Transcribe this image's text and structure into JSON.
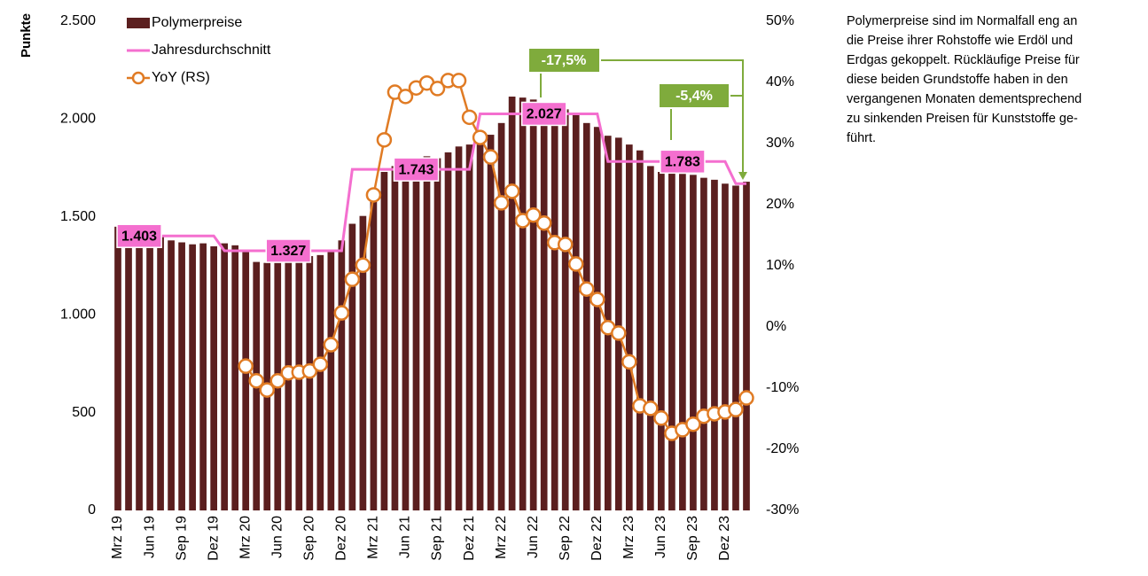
{
  "chart_data": {
    "type": "bar-line",
    "y_label": "Punkte",
    "categories": [
      "Mrz 19",
      null,
      null,
      "Jun 19",
      null,
      null,
      "Sep 19",
      null,
      null,
      "Dez 19",
      null,
      null,
      "Mrz 20",
      null,
      null,
      "Jun 20",
      null,
      null,
      "Sep 20",
      null,
      null,
      "Dez 20",
      null,
      null,
      "Mrz 21",
      null,
      null,
      "Jun 21",
      null,
      null,
      "Sep 21",
      null,
      null,
      "Dez 21",
      null,
      null,
      "Mrz 22",
      null,
      null,
      "Jun 22",
      null,
      null,
      "Sep 22",
      null,
      null,
      "Dez 22",
      null,
      null,
      "Mrz 23",
      null,
      null,
      "Jun 23",
      null,
      null,
      "Sep 23",
      null,
      null,
      "Dez 23",
      null,
      null
    ],
    "series": [
      {
        "name": "Polymerpreise",
        "type": "bar",
        "color": "#5b1f1f",
        "values": [
          1450,
          1455,
          1450,
          1440,
          1400,
          1380,
          1370,
          1360,
          1365,
          1350,
          1365,
          1355,
          1320,
          1270,
          1265,
          1265,
          1270,
          1290,
          1300,
          1305,
          1320,
          1380,
          1465,
          1505,
          1640,
          1730,
          1760,
          1780,
          1795,
          1810,
          1800,
          1830,
          1860,
          1870,
          1870,
          1920,
          1980,
          2115,
          2110,
          2100,
          2080,
          2060,
          2050,
          2020,
          1980,
          1960,
          1915,
          1905,
          1870,
          1840,
          1760,
          1730,
          1725,
          1720,
          1715,
          1700,
          1690,
          1670,
          1660,
          1680
        ]
      },
      {
        "name": "Jahresdurchschnitt",
        "type": "line",
        "color": "#f46fcf",
        "values": [
          1403,
          1403,
          1403,
          1403,
          1403,
          1403,
          1403,
          1403,
          1403,
          1403,
          1327,
          1327,
          1327,
          1327,
          1327,
          1327,
          1327,
          1327,
          1327,
          1327,
          1327,
          1327,
          1743,
          1743,
          1743,
          1743,
          1743,
          1743,
          1743,
          1743,
          1743,
          1743,
          1743,
          1743,
          2027,
          2027,
          2027,
          2027,
          2027,
          2027,
          2027,
          2027,
          2027,
          2027,
          2027,
          2027,
          1783,
          1783,
          1783,
          1783,
          1783,
          1783,
          1783,
          1783,
          1783,
          1783,
          1783,
          1783,
          1670,
          1670
        ],
        "value_labels": [
          null,
          null,
          "1.403",
          null,
          null,
          null,
          null,
          null,
          null,
          null,
          null,
          null,
          null,
          null,
          null,
          null,
          "1.327",
          null,
          null,
          null,
          null,
          null,
          null,
          null,
          null,
          null,
          null,
          null,
          "1.743",
          null,
          null,
          null,
          null,
          null,
          null,
          null,
          null,
          null,
          null,
          null,
          "2.027",
          null,
          null,
          null,
          null,
          null,
          null,
          null,
          null,
          null,
          null,
          null,
          null,
          "1.783",
          null,
          null,
          null,
          null,
          null,
          null
        ]
      },
      {
        "name": "YoY (RS)",
        "type": "line",
        "axis": "y2",
        "color": "#e07b24",
        "values": [
          null,
          null,
          null,
          null,
          null,
          null,
          null,
          null,
          null,
          null,
          null,
          null,
          -6.4,
          -8.8,
          -10.3,
          -8.8,
          -7.5,
          -7.4,
          -7.2,
          -6.1,
          -2.9,
          2.3,
          7.8,
          10.1,
          21.6,
          30.6,
          38.4,
          37.7,
          39.1,
          39.9,
          39.0,
          40.3,
          40.3,
          34.3,
          31.0,
          27.8,
          20.3,
          22.2,
          17.4,
          18.3,
          17.0,
          13.8,
          13.5,
          10.3,
          6.2,
          4.5,
          -0.1,
          -1.0,
          -5.7,
          -12.9,
          -13.3,
          -14.9,
          -17.4,
          -16.8,
          -15.9,
          -14.6,
          -14.2,
          -13.9,
          -13.5,
          -11.6
        ]
      }
    ],
    "ylim": [
      0,
      2500
    ],
    "yticks": [
      0,
      {
        "value": 500,
        "label": "500"
      },
      {
        "value": 1000,
        "label": "1.000"
      },
      {
        "value": 1500,
        "label": "1.500"
      },
      {
        "value": 2000,
        "label": "2.000"
      },
      {
        "value": 2500,
        "label": "2.500"
      }
    ],
    "y2lim": [
      -30,
      50
    ],
    "y2ticks": [
      {
        "value": -30,
        "label": "-30%"
      },
      {
        "value": -20,
        "label": "-20%"
      },
      {
        "value": -10,
        "label": "-10%"
      },
      {
        "value": 0,
        "label": "0%"
      },
      {
        "value": 10,
        "label": "10%"
      },
      {
        "value": 20,
        "label": "20%"
      },
      {
        "value": 30,
        "label": "30%"
      },
      {
        "value": 40,
        "label": "40%"
      },
      {
        "value": 50,
        "label": "50%"
      }
    ],
    "annotations": [
      "-17,5%",
      "-5,4%"
    ],
    "annotation_color": "#7fab3c",
    "legend": "upper left",
    "grid": false
  },
  "commentary": [
    "Polymerpreise sind im Normalfall eng an",
    "die Preise ihrer Rohstoffe wie Erdöl und",
    "Erdgas gekoppelt. Rückläufige Preise für",
    "diese beiden Grundstoffe haben in den",
    "vergangenen Monaten dementsprechend",
    "zu sinkenden Preisen für Kunststoffe ge-",
    "führt."
  ]
}
